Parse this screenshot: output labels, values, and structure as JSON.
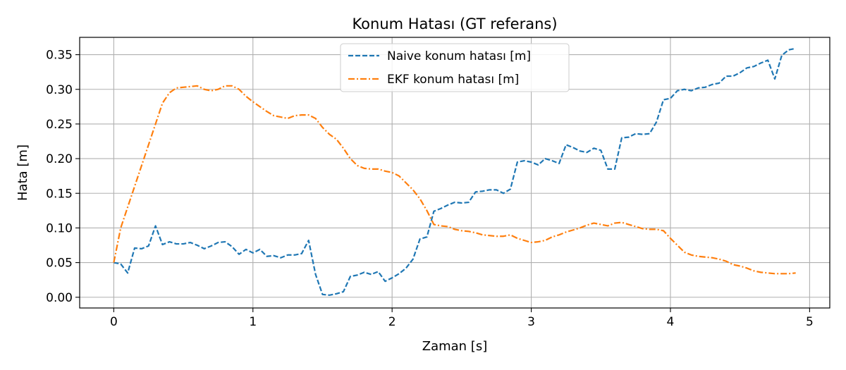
{
  "chart_data": {
    "type": "line",
    "title": "Konum Hatası (GT referans)",
    "xlabel": "Zaman [s]",
    "ylabel": "Hata [m]",
    "xlim": [
      -0.245,
      5.145
    ],
    "ylim": [
      -0.0155,
      0.375
    ],
    "xticks": [
      0,
      1,
      2,
      3,
      4,
      5
    ],
    "yticks": [
      0.0,
      0.05,
      0.1,
      0.15,
      0.2,
      0.25,
      0.3,
      0.35
    ],
    "grid": true,
    "legend_position": "upper center",
    "series": [
      {
        "name": "Naive konum hatası [m]",
        "color": "#1f77b4",
        "style": "dashed",
        "x": [
          0,
          0.05,
          0.1,
          0.15,
          0.2,
          0.25,
          0.3,
          0.35,
          0.4,
          0.45,
          0.5,
          0.55,
          0.6,
          0.65,
          0.7,
          0.75,
          0.8,
          0.85,
          0.9,
          0.95,
          1.0,
          1.05,
          1.1,
          1.15,
          1.2,
          1.25,
          1.3,
          1.35,
          1.4,
          1.45,
          1.5,
          1.55,
          1.6,
          1.65,
          1.7,
          1.75,
          1.8,
          1.85,
          1.9,
          1.95,
          2.0,
          2.05,
          2.1,
          2.15,
          2.2,
          2.25,
          2.3,
          2.35,
          2.4,
          2.45,
          2.5,
          2.55,
          2.6,
          2.65,
          2.7,
          2.75,
          2.8,
          2.85,
          2.9,
          2.95,
          3.0,
          3.05,
          3.1,
          3.15,
          3.2,
          3.25,
          3.3,
          3.35,
          3.4,
          3.45,
          3.5,
          3.55,
          3.6,
          3.65,
          3.7,
          3.75,
          3.8,
          3.85,
          3.9,
          3.95,
          4.0,
          4.05,
          4.1,
          4.15,
          4.2,
          4.25,
          4.3,
          4.35,
          4.4,
          4.45,
          4.5,
          4.55,
          4.6,
          4.65,
          4.7,
          4.75,
          4.8,
          4.85,
          4.9
        ],
        "values": [
          0.05,
          0.048,
          0.035,
          0.071,
          0.07,
          0.074,
          0.103,
          0.076,
          0.08,
          0.077,
          0.077,
          0.079,
          0.075,
          0.07,
          0.074,
          0.079,
          0.08,
          0.073,
          0.062,
          0.069,
          0.064,
          0.069,
          0.059,
          0.06,
          0.057,
          0.061,
          0.061,
          0.063,
          0.082,
          0.033,
          0.004,
          0.003,
          0.005,
          0.008,
          0.03,
          0.032,
          0.036,
          0.033,
          0.037,
          0.023,
          0.028,
          0.034,
          0.042,
          0.055,
          0.084,
          0.087,
          0.124,
          0.128,
          0.133,
          0.137,
          0.136,
          0.137,
          0.152,
          0.153,
          0.155,
          0.155,
          0.15,
          0.156,
          0.195,
          0.197,
          0.195,
          0.191,
          0.2,
          0.197,
          0.193,
          0.22,
          0.216,
          0.211,
          0.209,
          0.215,
          0.212,
          0.185,
          0.185,
          0.23,
          0.231,
          0.236,
          0.235,
          0.236,
          0.253,
          0.285,
          0.287,
          0.298,
          0.3,
          0.298,
          0.302,
          0.303,
          0.307,
          0.309,
          0.319,
          0.319,
          0.324,
          0.331,
          0.333,
          0.338,
          0.342,
          0.315,
          0.349,
          0.357,
          0.359
        ]
      },
      {
        "name": "EKF konum hatası [m]",
        "color": "#ff7f0e",
        "style": "dashdot",
        "x": [
          0,
          0.05,
          0.1,
          0.15,
          0.2,
          0.25,
          0.3,
          0.35,
          0.4,
          0.45,
          0.5,
          0.55,
          0.6,
          0.65,
          0.7,
          0.75,
          0.8,
          0.85,
          0.9,
          0.95,
          1.0,
          1.05,
          1.1,
          1.15,
          1.2,
          1.25,
          1.3,
          1.35,
          1.4,
          1.45,
          1.5,
          1.55,
          1.6,
          1.65,
          1.7,
          1.75,
          1.8,
          1.85,
          1.9,
          1.95,
          2.0,
          2.05,
          2.1,
          2.15,
          2.2,
          2.25,
          2.3,
          2.35,
          2.4,
          2.45,
          2.5,
          2.55,
          2.6,
          2.65,
          2.7,
          2.75,
          2.8,
          2.85,
          2.9,
          2.95,
          3.0,
          3.05,
          3.1,
          3.15,
          3.2,
          3.25,
          3.3,
          3.35,
          3.4,
          3.45,
          3.5,
          3.55,
          3.6,
          3.65,
          3.7,
          3.75,
          3.8,
          3.85,
          3.9,
          3.95,
          4.0,
          4.05,
          4.1,
          4.15,
          4.2,
          4.25,
          4.3,
          4.35,
          4.4,
          4.45,
          4.5,
          4.55,
          4.6,
          4.65,
          4.7,
          4.75,
          4.8,
          4.85,
          4.9
        ],
        "values": [
          0.05,
          0.1,
          0.13,
          0.16,
          0.19,
          0.22,
          0.25,
          0.28,
          0.295,
          0.302,
          0.303,
          0.304,
          0.305,
          0.3,
          0.298,
          0.3,
          0.305,
          0.305,
          0.3,
          0.29,
          0.282,
          0.275,
          0.268,
          0.262,
          0.26,
          0.258,
          0.262,
          0.263,
          0.263,
          0.258,
          0.245,
          0.235,
          0.228,
          0.215,
          0.2,
          0.19,
          0.186,
          0.185,
          0.185,
          0.182,
          0.18,
          0.175,
          0.165,
          0.155,
          0.142,
          0.125,
          0.105,
          0.103,
          0.102,
          0.098,
          0.096,
          0.095,
          0.093,
          0.09,
          0.089,
          0.088,
          0.088,
          0.09,
          0.085,
          0.082,
          0.079,
          0.08,
          0.082,
          0.087,
          0.09,
          0.094,
          0.097,
          0.1,
          0.104,
          0.107,
          0.105,
          0.103,
          0.107,
          0.108,
          0.105,
          0.102,
          0.099,
          0.098,
          0.098,
          0.096,
          0.085,
          0.075,
          0.065,
          0.061,
          0.059,
          0.058,
          0.057,
          0.055,
          0.052,
          0.047,
          0.045,
          0.042,
          0.038,
          0.036,
          0.035,
          0.034,
          0.034,
          0.034,
          0.035
        ]
      }
    ]
  }
}
